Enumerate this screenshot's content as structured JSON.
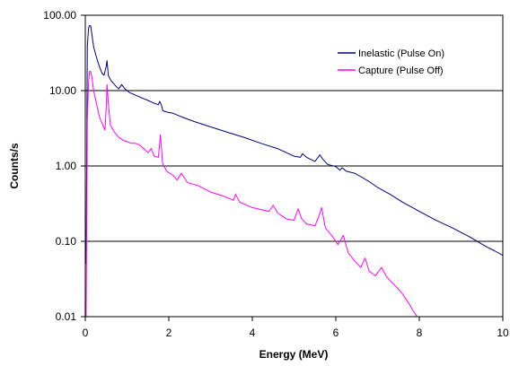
{
  "chart_data": {
    "type": "line",
    "title": "",
    "xlabel": "Energy (MeV)",
    "ylabel": "Counts/s",
    "xlim": [
      0,
      10
    ],
    "ylim": [
      0.01,
      100
    ],
    "y_scale": "log",
    "grid": "horizontal major gridlines",
    "legend_position": "top-right",
    "x_ticks": [
      0,
      2,
      4,
      6,
      8,
      10
    ],
    "x_tick_labels": [
      "0",
      "2",
      "4",
      "6",
      "8",
      "10"
    ],
    "y_ticks": [
      0.01,
      0.1,
      1,
      10,
      100
    ],
    "y_tick_labels": [
      "0.01",
      "0.10",
      "1.00",
      "10.00",
      "100.00"
    ],
    "series": [
      {
        "name": "Inelastic (Pulse On)",
        "color": "#000080",
        "x": [
          0.02,
          0.05,
          0.08,
          0.1,
          0.13,
          0.16,
          0.2,
          0.25,
          0.3,
          0.35,
          0.4,
          0.45,
          0.5,
          0.52,
          0.55,
          0.6,
          0.7,
          0.8,
          0.87,
          0.95,
          1.05,
          1.2,
          1.35,
          1.5,
          1.65,
          1.75,
          1.78,
          1.82,
          1.86,
          1.95,
          2.1,
          2.3,
          2.6,
          3.0,
          3.4,
          3.8,
          4.2,
          4.6,
          5.0,
          5.15,
          5.2,
          5.3,
          5.5,
          5.62,
          5.68,
          5.8,
          6.0,
          6.1,
          6.15,
          6.25,
          6.45,
          6.6,
          6.8,
          7.0,
          7.3,
          7.6,
          8.0,
          8.4,
          8.8,
          9.2,
          9.6,
          9.8,
          10.0
        ],
        "y": [
          0.05,
          40,
          68,
          73,
          72,
          55,
          38,
          30,
          24,
          20,
          17,
          16,
          21,
          25,
          16,
          14,
          12,
          10.5,
          12,
          10.5,
          9.5,
          8.7,
          8,
          7.4,
          6.8,
          6.5,
          7.2,
          6.5,
          5.4,
          5.2,
          5,
          4.5,
          3.9,
          3.3,
          2.8,
          2.4,
          2,
          1.7,
          1.35,
          1.3,
          1.45,
          1.3,
          1.15,
          1.4,
          1.25,
          1.05,
          0.98,
          0.88,
          0.95,
          0.85,
          0.8,
          0.72,
          0.62,
          0.52,
          0.42,
          0.33,
          0.25,
          0.19,
          0.15,
          0.115,
          0.085,
          0.075,
          0.065
        ]
      },
      {
        "name": "Capture (Pulse Off)",
        "color": "#FF00FF",
        "x": [
          0.02,
          0.05,
          0.08,
          0.1,
          0.13,
          0.16,
          0.2,
          0.25,
          0.3,
          0.35,
          0.4,
          0.47,
          0.5,
          0.52,
          0.55,
          0.6,
          0.7,
          0.8,
          0.9,
          1.0,
          1.1,
          1.2,
          1.3,
          1.4,
          1.5,
          1.58,
          1.65,
          1.75,
          1.8,
          1.85,
          1.95,
          2.1,
          2.2,
          2.3,
          2.45,
          2.7,
          3.0,
          3.3,
          3.55,
          3.6,
          3.7,
          4.0,
          4.4,
          4.5,
          4.6,
          4.8,
          5.0,
          5.1,
          5.18,
          5.3,
          5.5,
          5.6,
          5.66,
          5.75,
          5.9,
          6.0,
          6.05,
          6.18,
          6.3,
          6.45,
          6.6,
          6.7,
          6.8,
          6.95,
          7.1,
          7.2,
          7.3,
          7.45,
          7.6,
          7.75,
          7.85,
          7.95,
          8.05
        ],
        "y": [
          0.01,
          4,
          13,
          18,
          18,
          15,
          10,
          7.5,
          5.5,
          4.3,
          3.7,
          3,
          6,
          12,
          7,
          3.5,
          2.8,
          2.4,
          2.2,
          2.1,
          2,
          2,
          1.9,
          1.7,
          1.5,
          1.7,
          1.35,
          1.3,
          2.6,
          1.1,
          0.85,
          0.75,
          0.65,
          0.8,
          0.6,
          0.55,
          0.45,
          0.4,
          0.35,
          0.42,
          0.33,
          0.28,
          0.25,
          0.3,
          0.24,
          0.2,
          0.19,
          0.27,
          0.2,
          0.17,
          0.16,
          0.22,
          0.28,
          0.15,
          0.12,
          0.1,
          0.09,
          0.12,
          0.07,
          0.055,
          0.045,
          0.06,
          0.04,
          0.035,
          0.045,
          0.035,
          0.03,
          0.025,
          0.02,
          0.015,
          0.012,
          0.01,
          0.01
        ]
      }
    ]
  }
}
